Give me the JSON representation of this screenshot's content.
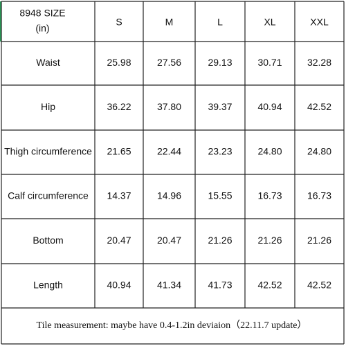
{
  "table": {
    "header": [
      [
        "8948 SIZE",
        "(in)"
      ],
      "S",
      "M",
      "L",
      "XL",
      "XXL"
    ],
    "rows": [
      [
        "Waist",
        "25.98",
        "27.56",
        "29.13",
        "30.71",
        "32.28"
      ],
      [
        "Hip",
        "36.22",
        "37.80",
        "39.37",
        "40.94",
        "42.52"
      ],
      [
        "Thigh circumference",
        "21.65",
        "22.44",
        "23.23",
        "24.80",
        "24.80"
      ],
      [
        "Calf circumference",
        "14.37",
        "14.96",
        "15.55",
        "16.73",
        "16.73"
      ],
      [
        "Bottom",
        "20.47",
        "20.47",
        "21.26",
        "21.26",
        "21.26"
      ],
      [
        "Length",
        "40.94",
        "41.34",
        "41.73",
        "42.52",
        "42.52"
      ]
    ],
    "footer": "Tile measurement: maybe have 0.4-1.2in deviaion（22.11.7 update）"
  }
}
